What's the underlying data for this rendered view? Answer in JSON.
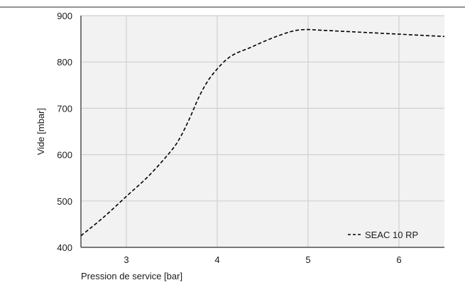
{
  "chart_data": {
    "type": "line",
    "xlabel": "Pression de service [bar]",
    "ylabel": "Vide [mbar]",
    "xlim": [
      2.5,
      6.5
    ],
    "ylim": [
      400,
      900
    ],
    "xticks": [
      3,
      4,
      5,
      6
    ],
    "yticks": [
      400,
      500,
      600,
      700,
      800,
      900
    ],
    "grid": true,
    "legend_position": "bottom-right",
    "series": [
      {
        "name": "SEAC 10 RP",
        "line_style": "dashed",
        "color": "#000000",
        "x": [
          2.5,
          2.75,
          3.0,
          3.25,
          3.5,
          3.6,
          3.7,
          3.8,
          3.9,
          4.0,
          4.1,
          4.2,
          4.35,
          4.5,
          4.65,
          4.8,
          4.9,
          5.0,
          5.1,
          5.3,
          5.5,
          6.0,
          6.5
        ],
        "y": [
          425,
          465,
          510,
          555,
          610,
          640,
          680,
          725,
          760,
          785,
          805,
          818,
          830,
          843,
          855,
          865,
          869,
          870,
          869,
          867,
          865,
          860,
          855
        ]
      }
    ]
  },
  "frame": {
    "plot_background": "#f2f2f2",
    "grid_color": "#d0d0d0",
    "top_rule_color": "#555555"
  }
}
